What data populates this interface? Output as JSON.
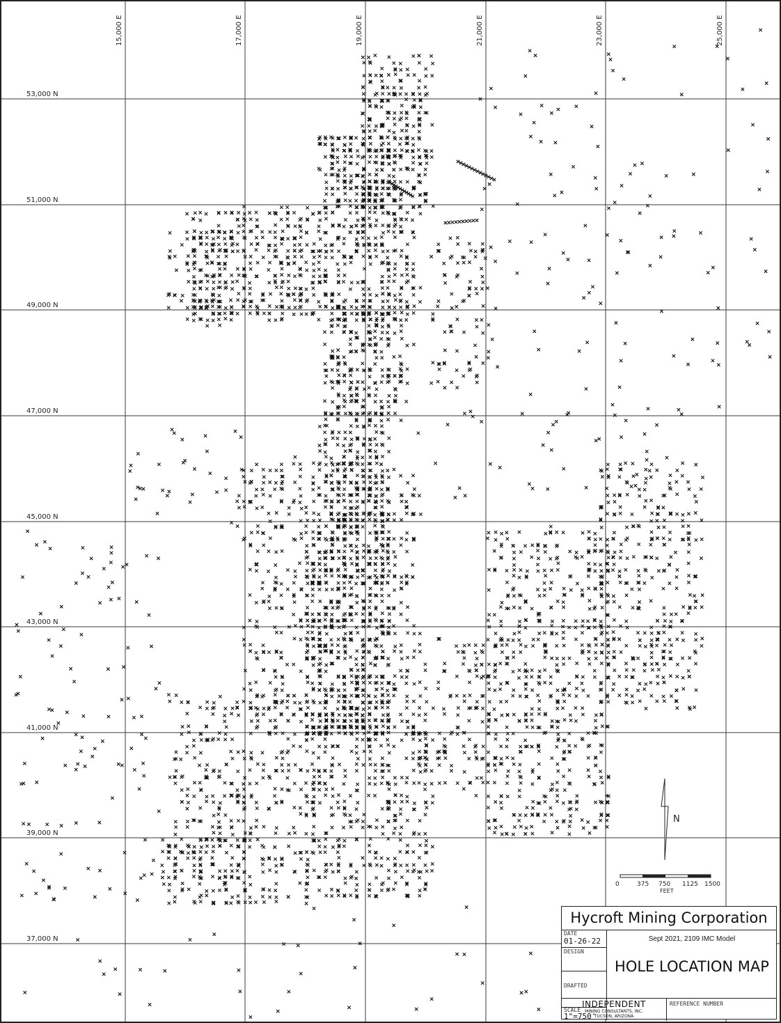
{
  "map": {
    "easting_labels": [
      "15,000 E",
      "17,000 E",
      "19,000 E",
      "21,000 E",
      "23,000 E",
      "25,000 E"
    ],
    "northing_labels": [
      "53,000 N",
      "51,000 N",
      "49,000 N",
      "47,000 N",
      "45,000 N",
      "43,000 N",
      "41,000 N",
      "39,000 N",
      "37,000 N"
    ],
    "hole_marker_symbol": "x",
    "north_arrow_label": "N",
    "scale_bar": {
      "ticks": [
        "0",
        "375",
        "750",
        "1125",
        "1500"
      ],
      "unit": "FEET"
    }
  },
  "title_block": {
    "company": "Hycroft Mining Corporation",
    "model": "Sept 2021, 2109 IMC Model",
    "title": "HOLE LOCATION MAP",
    "date_label": "DATE",
    "date_value": "01-26-22",
    "design_label": "DESIGN",
    "design_value": "",
    "drafted_label": "DRAFTED",
    "drafted_value": "",
    "scale_label": "SCALE",
    "scale_value": "1\"=750'",
    "consultant_name": "INDEPENDENT",
    "consultant_sub": "MINING CONSULTANTS, INC.",
    "consultant_location": "TUCSON, ARIZONA",
    "reference_label": "REFERENCE NUMBER"
  }
}
